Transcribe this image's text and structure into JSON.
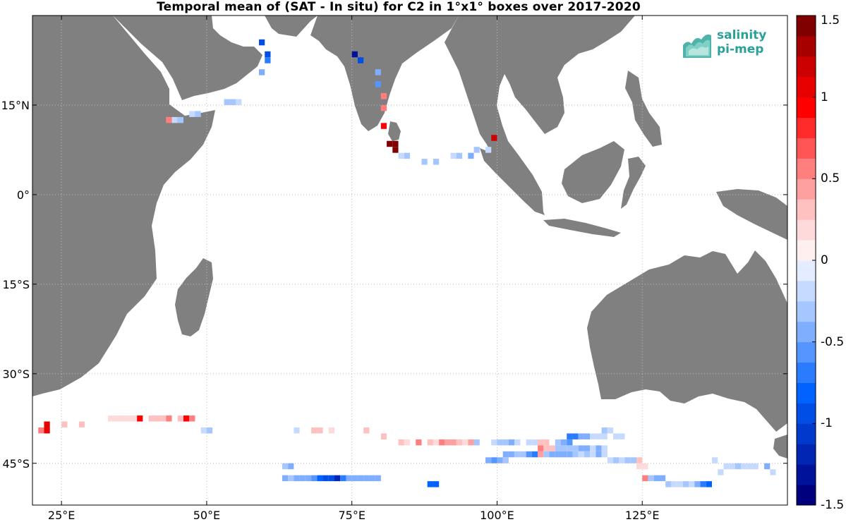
{
  "title": "Temporal mean of (SAT - In situ) for C2 in 1°x1° boxes over 2017-2020",
  "map": {
    "lon_range": [
      20,
      150
    ],
    "lat_range": [
      -52,
      30
    ],
    "x_ticks": [
      {
        "value": 25,
        "label": "25°E"
      },
      {
        "value": 50,
        "label": "50°E"
      },
      {
        "value": 75,
        "label": "75°E"
      },
      {
        "value": 100,
        "label": "100°E"
      },
      {
        "value": 125,
        "label": "125°E"
      }
    ],
    "y_ticks": [
      {
        "value": 15,
        "label": "15°N"
      },
      {
        "value": 0,
        "label": "0°"
      },
      {
        "value": -15,
        "label": "15°S"
      },
      {
        "value": -30,
        "label": "30°S"
      },
      {
        "value": -45,
        "label": "45°S"
      }
    ],
    "land_color": "#808080",
    "grid": true
  },
  "colorbar": {
    "range": [
      -1.5,
      1.5
    ],
    "levels": 24,
    "tick_labels": [
      "1.5",
      "1",
      "0.5",
      "0",
      "-0.5",
      "-1",
      "-1.5"
    ],
    "tick_values": [
      1.5,
      1,
      0.5,
      0,
      -0.5,
      -1,
      -1.5
    ]
  },
  "logo": {
    "line1": "salinity",
    "line2": "pi-mep",
    "color": "#2aa198"
  },
  "cells": [
    [
      59,
      25,
      -1.0
    ],
    [
      60,
      23,
      -0.9
    ],
    [
      60,
      22,
      -0.7
    ],
    [
      59,
      20,
      -0.4
    ],
    [
      75,
      23,
      -1.3
    ],
    [
      76,
      22,
      -0.9
    ],
    [
      79,
      20,
      -0.5
    ],
    [
      79,
      18,
      -0.6
    ],
    [
      80,
      16,
      0.6
    ],
    [
      80,
      14,
      0.5
    ],
    [
      80,
      11,
      0.9
    ],
    [
      81,
      8,
      1.5
    ],
    [
      82,
      8,
      1.4
    ],
    [
      82,
      7,
      1.5
    ],
    [
      83,
      6,
      -0.2
    ],
    [
      84,
      6,
      -0.3
    ],
    [
      87,
      5,
      -0.3
    ],
    [
      89,
      5,
      -0.3
    ],
    [
      92,
      6,
      -0.2
    ],
    [
      93,
      6,
      -0.3
    ],
    [
      95,
      6,
      -0.4
    ],
    [
      96,
      7,
      -0.3
    ],
    [
      98,
      7,
      -0.2
    ],
    [
      99,
      9,
      1.2
    ],
    [
      43,
      12,
      0.5
    ],
    [
      44,
      12,
      -0.2
    ],
    [
      45,
      12,
      -0.3
    ],
    [
      47,
      13,
      -0.2
    ],
    [
      48,
      13,
      -0.3
    ],
    [
      53,
      15,
      -0.3
    ],
    [
      54,
      15,
      -0.3
    ],
    [
      55,
      15,
      -0.2
    ],
    [
      21,
      -40,
      0.6
    ],
    [
      22,
      -40,
      1.0
    ],
    [
      22,
      -39,
      1.1
    ],
    [
      25,
      -39,
      0.3
    ],
    [
      28,
      -39,
      0.3
    ],
    [
      33,
      -38,
      0.2
    ],
    [
      34,
      -38,
      0.2
    ],
    [
      35,
      -38,
      0.2
    ],
    [
      36,
      -38,
      0.2
    ],
    [
      37,
      -38,
      0.2
    ],
    [
      38,
      -38,
      0.9
    ],
    [
      40,
      -38,
      0.3
    ],
    [
      41,
      -38,
      0.3
    ],
    [
      42,
      -38,
      0.3
    ],
    [
      43,
      -38,
      0.5
    ],
    [
      45,
      -38,
      0.3
    ],
    [
      46,
      -38,
      0.9
    ],
    [
      47,
      -38,
      0.6
    ],
    [
      49,
      -40,
      -0.2
    ],
    [
      50,
      -40,
      -0.3
    ],
    [
      65,
      -40,
      -0.2
    ],
    [
      68,
      -40,
      0.3
    ],
    [
      69,
      -40,
      0.3
    ],
    [
      71,
      -40,
      0.2
    ],
    [
      77,
      -40,
      0.3
    ],
    [
      80,
      -41,
      0.3
    ],
    [
      83,
      -42,
      0.3
    ],
    [
      84,
      -42,
      0.2
    ],
    [
      86,
      -42,
      0.6
    ],
    [
      88,
      -42,
      0.3
    ],
    [
      89,
      -42,
      0.2
    ],
    [
      90,
      -42,
      0.5
    ],
    [
      91,
      -42,
      0.4
    ],
    [
      92,
      -42,
      0.4
    ],
    [
      93,
      -42,
      0.3
    ],
    [
      94,
      -42,
      0.2
    ],
    [
      95,
      -42,
      0.4
    ],
    [
      96,
      -42,
      -0.3
    ],
    [
      99,
      -42,
      -0.2
    ],
    [
      100,
      -42,
      -0.3
    ],
    [
      101,
      -42,
      -0.3
    ],
    [
      102,
      -42,
      -0.4
    ],
    [
      103,
      -42,
      -0.2
    ],
    [
      105,
      -42,
      -0.2
    ],
    [
      106,
      -42,
      -0.2
    ],
    [
      107,
      -42,
      0.3
    ],
    [
      108,
      -42,
      0.3
    ],
    [
      110,
      -42,
      -0.3
    ],
    [
      111,
      -42,
      -0.5
    ],
    [
      112,
      -42,
      -0.6
    ],
    [
      112,
      -41,
      -0.7
    ],
    [
      113,
      -41,
      -0.7
    ],
    [
      114,
      -41,
      -0.4
    ],
    [
      115,
      -41,
      -0.5
    ],
    [
      116,
      -41,
      -0.2
    ],
    [
      117,
      -41,
      -0.2
    ],
    [
      118,
      -40,
      -0.3
    ],
    [
      118,
      -41,
      -0.2
    ],
    [
      119,
      -40,
      -0.2
    ],
    [
      120,
      -41,
      -0.2
    ],
    [
      121,
      -41,
      -0.2
    ],
    [
      107,
      -43,
      0.6
    ],
    [
      107,
      -44,
      0.4
    ],
    [
      108,
      -43,
      0.3
    ],
    [
      109,
      -43,
      0.3
    ],
    [
      110,
      -43,
      -0.3
    ],
    [
      111,
      -43,
      -0.3
    ],
    [
      112,
      -43,
      -0.3
    ],
    [
      113,
      -43,
      -0.3
    ],
    [
      114,
      -43,
      -0.4
    ],
    [
      115,
      -43,
      -0.4
    ],
    [
      116,
      -43,
      -0.2
    ],
    [
      117,
      -43,
      -0.4
    ],
    [
      118,
      -43,
      -0.2
    ],
    [
      101,
      -44,
      -0.5
    ],
    [
      102,
      -44,
      -0.4
    ],
    [
      103,
      -44,
      -0.3
    ],
    [
      104,
      -44,
      -0.3
    ],
    [
      105,
      -44,
      -0.6
    ],
    [
      106,
      -44,
      -0.7
    ],
    [
      98,
      -45,
      -0.5
    ],
    [
      99,
      -45,
      -0.6
    ],
    [
      100,
      -45,
      -0.4
    ],
    [
      101,
      -45,
      -0.3
    ],
    [
      108,
      -44,
      -0.3
    ],
    [
      109,
      -44,
      -0.4
    ],
    [
      110,
      -44,
      -0.5
    ],
    [
      111,
      -44,
      -0.5
    ],
    [
      112,
      -44,
      -0.5
    ],
    [
      113,
      -44,
      -0.3
    ],
    [
      114,
      -44,
      -0.2
    ],
    [
      115,
      -44,
      -0.3
    ],
    [
      116,
      -44,
      -0.2
    ],
    [
      117,
      -44,
      -0.4
    ],
    [
      118,
      -44,
      -0.2
    ],
    [
      119,
      -45,
      -0.2
    ],
    [
      120,
      -45,
      -0.3
    ],
    [
      121,
      -45,
      -0.2
    ],
    [
      122,
      -45,
      -0.3
    ],
    [
      123,
      -45,
      -0.3
    ],
    [
      124,
      -45,
      0.3
    ],
    [
      124,
      -46,
      0.2
    ],
    [
      125,
      -46,
      0.2
    ],
    [
      125,
      -48,
      0.6
    ],
    [
      126,
      -48,
      -0.3
    ],
    [
      127,
      -48,
      -0.5
    ],
    [
      128,
      -48,
      -0.4
    ],
    [
      129,
      -49,
      -0.3
    ],
    [
      130,
      -49,
      -0.2
    ],
    [
      131,
      -49,
      -0.2
    ],
    [
      132,
      -49,
      -0.3
    ],
    [
      133,
      -49,
      -0.2
    ],
    [
      134,
      -49,
      -0.4
    ],
    [
      135,
      -49,
      -0.7
    ],
    [
      136,
      -49,
      -0.8
    ],
    [
      137,
      -45,
      -0.2
    ],
    [
      138,
      -47,
      -0.2
    ],
    [
      139,
      -46,
      -0.2
    ],
    [
      140,
      -46,
      -0.2
    ],
    [
      141,
      -46,
      -0.3
    ],
    [
      142,
      -46,
      -0.2
    ],
    [
      143,
      -46,
      -0.2
    ],
    [
      144,
      -46,
      -0.2
    ],
    [
      146,
      -46,
      -0.5
    ],
    [
      147,
      -47,
      -0.2
    ],
    [
      63,
      -46,
      -0.3
    ],
    [
      64,
      -46,
      -0.5
    ],
    [
      63,
      -48,
      -0.4
    ],
    [
      64,
      -48,
      -0.3
    ],
    [
      65,
      -48,
      -0.5
    ],
    [
      66,
      -48,
      -0.4
    ],
    [
      67,
      -48,
      -0.5
    ],
    [
      68,
      -48,
      -0.6
    ],
    [
      69,
      -48,
      -0.8
    ],
    [
      70,
      -48,
      -0.9
    ],
    [
      71,
      -48,
      -1.0
    ],
    [
      72,
      -48,
      -1.2
    ],
    [
      73,
      -48,
      -0.7
    ],
    [
      74,
      -48,
      -0.4
    ],
    [
      75,
      -48,
      -0.4
    ],
    [
      76,
      -48,
      -0.5
    ],
    [
      77,
      -48,
      -0.4
    ],
    [
      78,
      -48,
      -0.5
    ],
    [
      79,
      -48,
      -0.5
    ],
    [
      88,
      -49,
      -0.8
    ],
    [
      89,
      -49,
      -0.8
    ]
  ]
}
